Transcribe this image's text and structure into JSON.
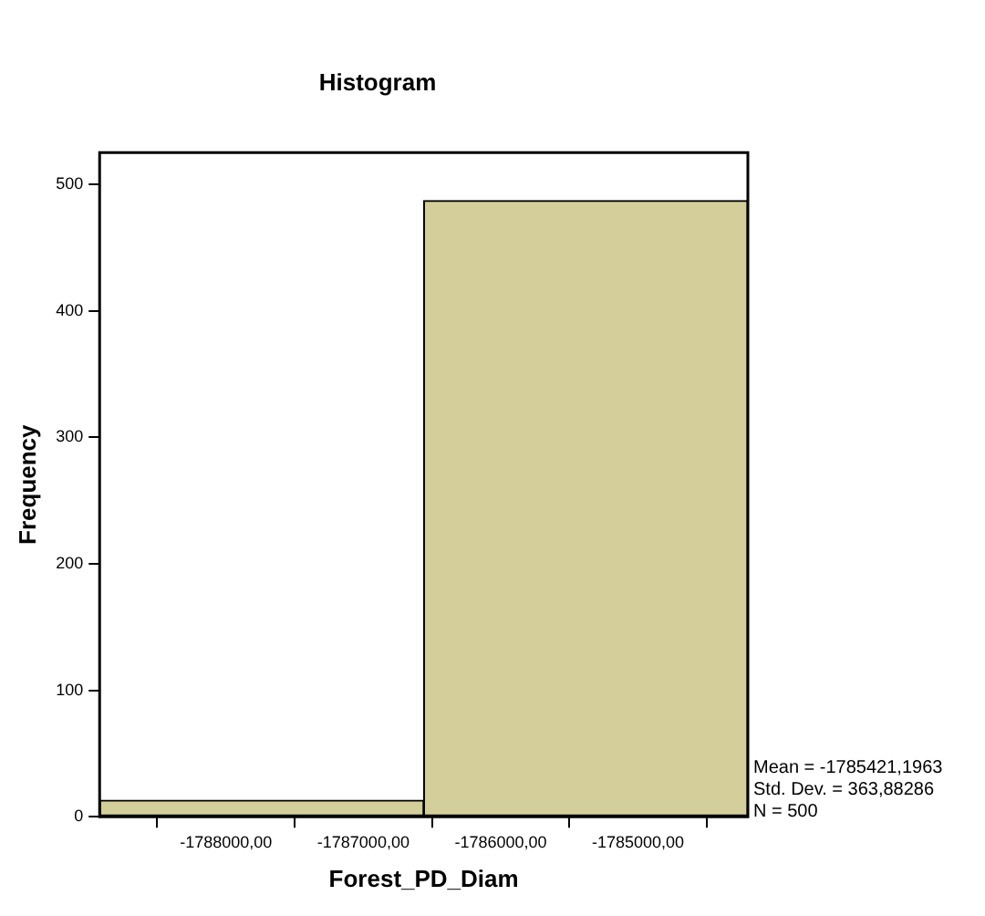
{
  "chart_data": {
    "type": "histogram",
    "title": "Histogram",
    "xlabel": "Forest_PD_Diam",
    "ylabel": "Frequency",
    "bins": [
      -1788920,
      -1786560,
      -1784200
    ],
    "values": [
      13,
      487
    ],
    "color": "#d3ce9a",
    "xlim": [
      -1788920,
      -1784200
    ],
    "xticks": [
      {
        "value": -1788000,
        "label": "-1788000,00"
      },
      {
        "value": -1787000,
        "label": "-1787000,00"
      },
      {
        "value": -1786000,
        "label": "-1786000,00"
      },
      {
        "value": -1785000,
        "label": "-1785000,00"
      }
    ],
    "ylim": [
      0,
      525
    ],
    "yticks": [
      0,
      100,
      200,
      300,
      400,
      500
    ],
    "grid": false,
    "legend": false,
    "annotations": [
      "Mean = -1785421,1963",
      "Std. Dev. = 363,88286",
      "N = 500"
    ]
  }
}
